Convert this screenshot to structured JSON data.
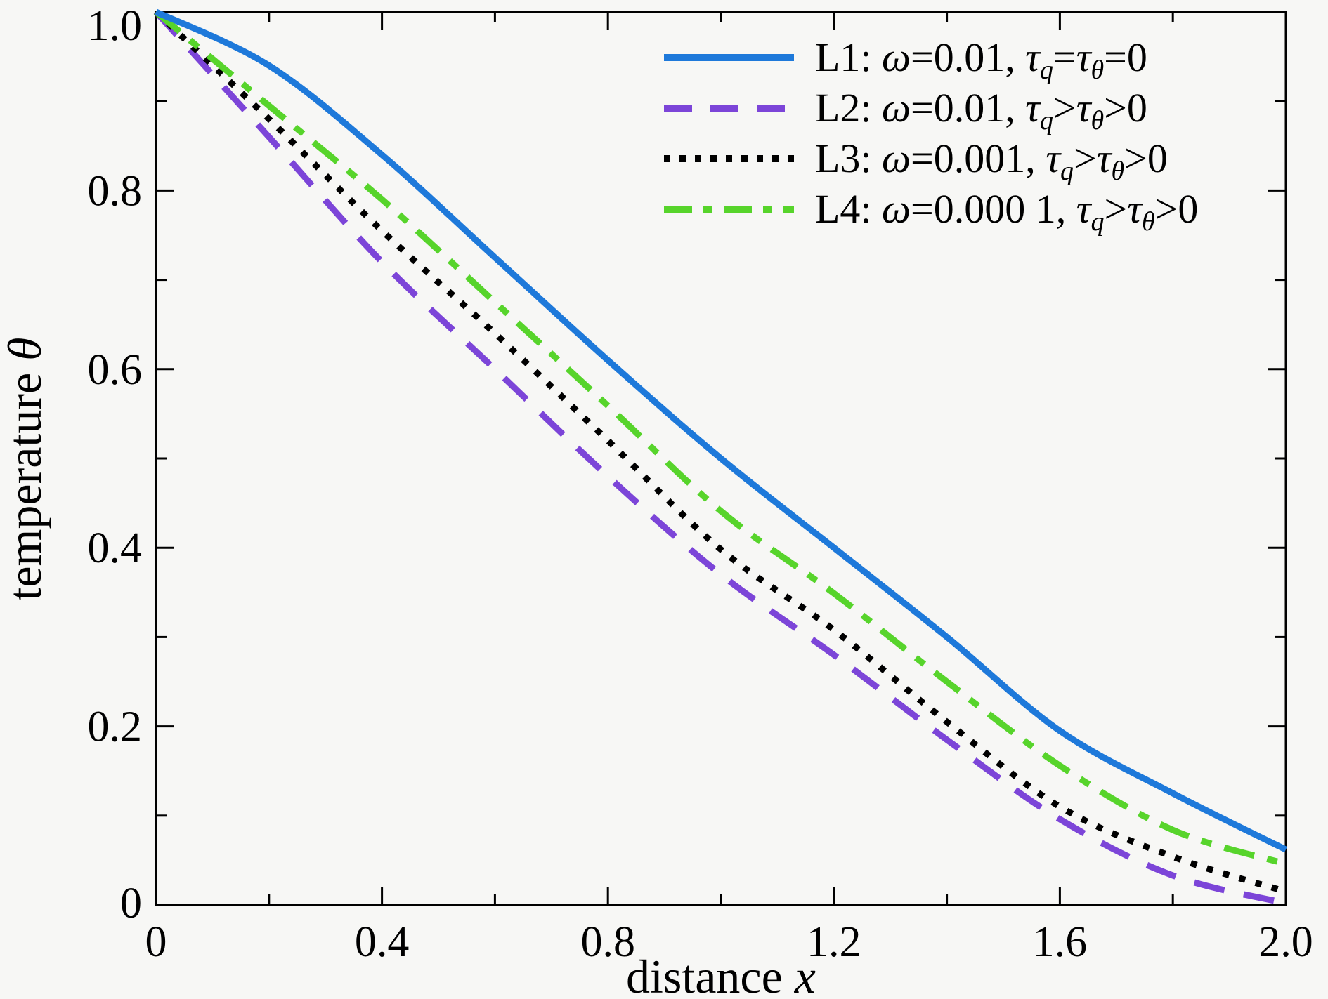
{
  "page": {
    "background": "#f7f7f5",
    "frame_color": "#000000"
  },
  "chart_data": {
    "type": "line",
    "title": "",
    "xlabel": "distance x",
    "ylabel": "temperature θ",
    "xlabel_segments": [
      {
        "t": "distance ",
        "i": false
      },
      {
        "t": "x",
        "i": true
      }
    ],
    "ylabel_segments": [
      {
        "t": "temperature ",
        "i": false
      },
      {
        "t": "θ",
        "i": true
      }
    ],
    "xlim": [
      0,
      2.0
    ],
    "ylim": [
      0,
      1.0
    ],
    "grid": false,
    "legend_position": "top-right",
    "x_major_ticks": [
      0,
      0.4,
      0.8,
      1.2,
      1.6,
      2.0
    ],
    "x_tick_labels": [
      "0",
      "0.4",
      "0.8",
      "1.2",
      "1.6",
      "2.0"
    ],
    "x_minor_step": 0.2,
    "y_major_ticks": [
      0,
      0.2,
      0.4,
      0.6,
      0.8,
      1.0
    ],
    "y_tick_labels": [
      "0",
      "0.2",
      "0.4",
      "0.6",
      "0.8",
      "1.0"
    ],
    "y_minor_step": 0.1,
    "x": [
      0,
      0.2,
      0.4,
      0.6,
      0.8,
      1.0,
      1.2,
      1.4,
      1.6,
      1.8,
      2.0
    ],
    "series": [
      {
        "name": "L1",
        "label": "L1: ω=0.01, τq=τθ=0",
        "color": "#1e79da",
        "dash": "solid",
        "values": [
          1.0,
          0.94,
          0.84,
          0.725,
          0.61,
          0.5,
          0.4,
          0.3,
          0.195,
          0.125,
          0.062
        ]
      },
      {
        "name": "L2",
        "label": "L2: ω=0.01, τq>τθ>0",
        "color": "#7c45d8",
        "dash": "dashed",
        "values": [
          1.0,
          0.86,
          0.72,
          0.6,
          0.48,
          0.37,
          0.28,
          0.185,
          0.096,
          0.033,
          0.002
        ]
      },
      {
        "name": "L3",
        "label": "L3: ω=0.001, τq>τθ>0",
        "color": "#000000",
        "dash": "dotted",
        "values": [
          1.0,
          0.88,
          0.755,
          0.64,
          0.52,
          0.398,
          0.308,
          0.205,
          0.11,
          0.054,
          0.015
        ]
      },
      {
        "name": "L4",
        "label": "L4: ω=0.000 1, τq>τθ>0",
        "color": "#57d42b",
        "dash": "dashdot",
        "values": [
          1.0,
          0.895,
          0.79,
          0.675,
          0.559,
          0.441,
          0.349,
          0.25,
          0.156,
          0.084,
          0.046
        ]
      }
    ],
    "draw_order": [
      "L2",
      "L3",
      "L4",
      "L1"
    ]
  },
  "legend": {
    "items": [
      {
        "name": "L1",
        "color": "#1e79da",
        "dash": "solid",
        "segments": [
          {
            "t": "L1: "
          },
          {
            "t": "ω",
            "i": true
          },
          {
            "t": "="
          },
          {
            "t": "0.01, "
          },
          {
            "t": "τ",
            "i": true
          },
          {
            "t": "q",
            "sub": true
          },
          {
            "t": "="
          },
          {
            "t": "τ",
            "i": true
          },
          {
            "t": "θ",
            "sub": true
          },
          {
            "t": "="
          },
          {
            "t": "0"
          }
        ]
      },
      {
        "name": "L2",
        "color": "#7c45d8",
        "dash": "dashed",
        "segments": [
          {
            "t": "L2: "
          },
          {
            "t": "ω",
            "i": true
          },
          {
            "t": "="
          },
          {
            "t": "0.01, "
          },
          {
            "t": "τ",
            "i": true
          },
          {
            "t": "q",
            "sub": true
          },
          {
            "t": ">"
          },
          {
            "t": "τ",
            "i": true
          },
          {
            "t": "θ",
            "sub": true
          },
          {
            "t": ">"
          },
          {
            "t": "0"
          }
        ]
      },
      {
        "name": "L3",
        "color": "#000000",
        "dash": "dotted",
        "segments": [
          {
            "t": "L3: "
          },
          {
            "t": "ω",
            "i": true
          },
          {
            "t": "="
          },
          {
            "t": "0.001, "
          },
          {
            "t": "τ",
            "i": true
          },
          {
            "t": "q",
            "sub": true
          },
          {
            "t": ">"
          },
          {
            "t": "τ",
            "i": true
          },
          {
            "t": "θ",
            "sub": true
          },
          {
            "t": ">"
          },
          {
            "t": "0"
          }
        ]
      },
      {
        "name": "L4",
        "color": "#57d42b",
        "dash": "dashdot",
        "segments": [
          {
            "t": "L4: "
          },
          {
            "t": "ω",
            "i": true
          },
          {
            "t": "="
          },
          {
            "t": "0.000 1, "
          },
          {
            "t": "τ",
            "i": true
          },
          {
            "t": "q",
            "sub": true
          },
          {
            "t": ">"
          },
          {
            "t": "τ",
            "i": true
          },
          {
            "t": "θ",
            "sub": true
          },
          {
            "t": ">"
          },
          {
            "t": "0"
          }
        ]
      }
    ]
  }
}
